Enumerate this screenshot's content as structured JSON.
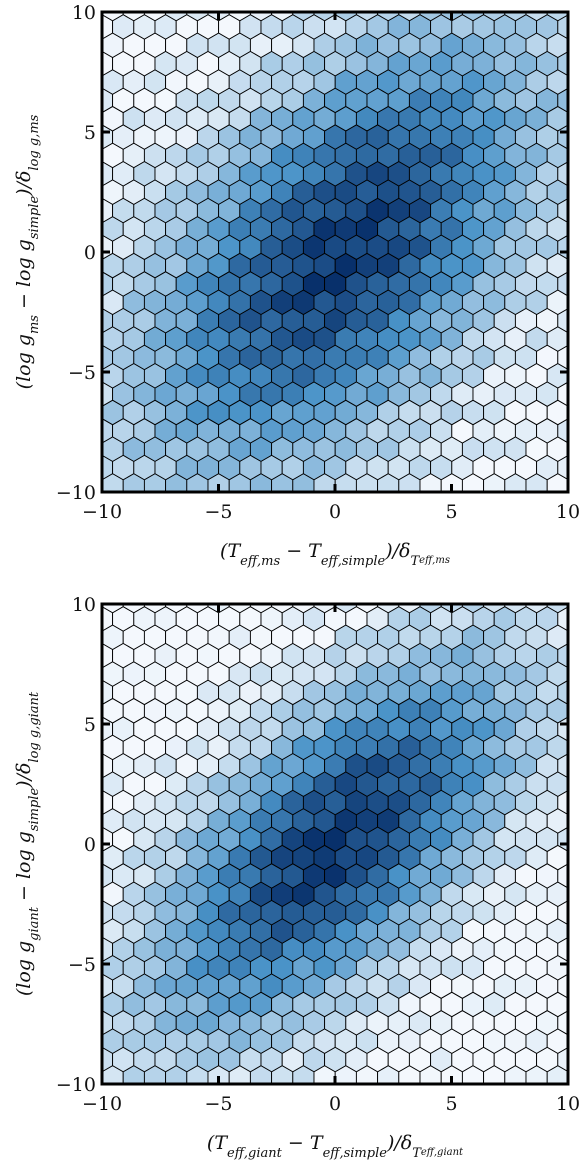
{
  "chart_data": [
    {
      "type": "hexbin",
      "xlabel": "(T_eff,ms − T_eff,simple)/δ_T_eff,ms",
      "ylabel": "(log g_ms − log g_simple)/δ_log g,ms",
      "xlim": [
        -10,
        10
      ],
      "ylim": [
        -10,
        10
      ],
      "xticks": [
        -10,
        -5,
        0,
        5,
        10
      ],
      "yticks": [
        -10,
        -5,
        0,
        5,
        10
      ],
      "xtick_labels": [
        "−10",
        "−5",
        "0",
        "5",
        "10"
      ],
      "ytick_labels": [
        "−10",
        "−5",
        "0",
        "5",
        "10"
      ],
      "colormap": "Blues",
      "density_model": {
        "center": [
          0.3,
          0
        ],
        "sigma_major": 7.5,
        "sigma_minor": 4.0,
        "major_axis_direction": [
          -0.65,
          -0.76
        ],
        "peak_density": 1.0,
        "floor_density": 0.05
      },
      "grid": false
    },
    {
      "type": "hexbin",
      "xlabel": "(T_eff,giant − T_eff,simple)/δ_T_eff,giant",
      "ylabel": "(log g_giant − log g_simple)/δ_log g,giant",
      "xlim": [
        -10,
        10
      ],
      "ylim": [
        -10,
        10
      ],
      "xticks": [
        -10,
        -5,
        0,
        5,
        10
      ],
      "yticks": [
        -10,
        -5,
        0,
        5,
        10
      ],
      "xtick_labels": [
        "−10",
        "−5",
        "0",
        "5",
        "10"
      ],
      "ytick_labels": [
        "−10",
        "−5",
        "0",
        "5",
        "10"
      ],
      "colormap": "Blues",
      "density_model": {
        "center": [
          0,
          0
        ],
        "sigma_major": 7.0,
        "sigma_minor": 3.2,
        "major_axis_direction": [
          -0.7,
          -0.71
        ],
        "peak_density": 1.0,
        "floor_density": 0.02
      },
      "grid": false
    }
  ],
  "colors": {
    "cmap_low": "#f4f8fd",
    "cmap_mid": "#4a93c8",
    "cmap_high": "#08306b",
    "hex_edge": "#000000",
    "axis": "#000000"
  }
}
